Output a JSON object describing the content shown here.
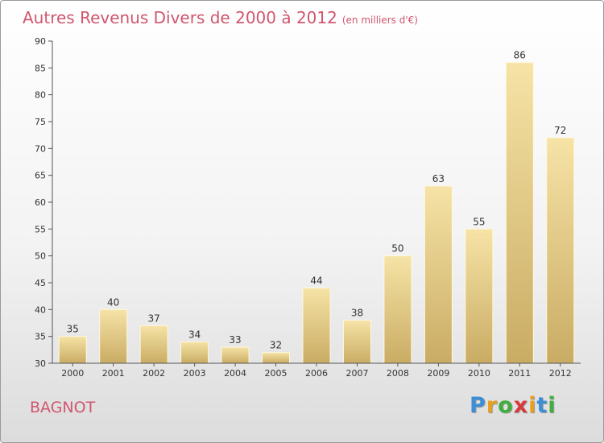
{
  "chart_title": "Autres Revenus Divers de 2000 à 2012",
  "chart_subtitle": "(en milliers d'€)",
  "place_name": "BAGNOT",
  "brand": {
    "letters": [
      "P",
      "r",
      "o",
      "x",
      "i",
      "t",
      "i"
    ],
    "colors": [
      "#3c8fd4",
      "#e6a020",
      "#3fae3f",
      "#d83a3a",
      "#e6a020",
      "#3c8fd4",
      "#3fae3f"
    ]
  },
  "colors": {
    "title": "#d0566f",
    "bar_top": "#f6e3a6",
    "bar_bottom": "#c9ac64",
    "axis": "#555555"
  },
  "chart_data": {
    "type": "bar",
    "title": "Autres Revenus Divers de 2000 à 2012",
    "subtitle": "(en milliers d'€)",
    "categories": [
      "2000",
      "2001",
      "2002",
      "2003",
      "2004",
      "2005",
      "2006",
      "2007",
      "2008",
      "2009",
      "2010",
      "2011",
      "2012"
    ],
    "values": [
      35,
      40,
      37,
      34,
      33,
      32,
      44,
      38,
      50,
      63,
      55,
      86,
      72
    ],
    "ylim": [
      30,
      90
    ],
    "yticks": [
      30,
      35,
      40,
      45,
      50,
      55,
      60,
      65,
      70,
      75,
      80,
      85,
      90
    ],
    "grid": false,
    "data_labels": true
  }
}
